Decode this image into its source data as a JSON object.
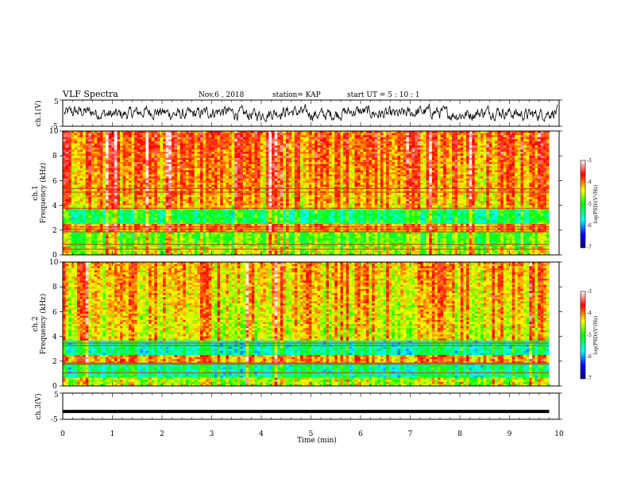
{
  "header": {
    "title": "VLF Spectra",
    "date": "Nov.6  , 2018",
    "station": "station= KAP",
    "start": "start  UT  =   5  : 10 : 1"
  },
  "chart_data": [
    {
      "type": "line",
      "ylabel": "ch.1(V)",
      "ylim": [
        -5,
        5
      ],
      "yticks": [
        "5",
        "-5"
      ],
      "xlim": [
        0,
        10
      ]
    },
    {
      "type": "heatmap",
      "ylabel_line1": "ch.1",
      "ylabel_line2": "Frequency  (kHz)",
      "ylim": [
        0,
        10
      ],
      "yticks": [
        "0",
        "2",
        "4",
        "6",
        "8",
        "10"
      ],
      "xlim": [
        0,
        9.8
      ],
      "colorbar": {
        "label": "log(PSD)(V²/Hz)",
        "ticks": [
          "-3",
          "-4",
          "-5",
          "-6",
          "-7"
        ],
        "range": [
          -7,
          -3
        ]
      }
    },
    {
      "type": "heatmap",
      "ylabel_line1": "ch.2",
      "ylabel_line2": "Frequency  (kHz)",
      "ylim": [
        0,
        10
      ],
      "yticks": [
        "0",
        "2",
        "4",
        "6",
        "8",
        "10"
      ],
      "xlim": [
        0,
        9.8
      ],
      "colorbar": {
        "label": "log(PSD)(V²/Hz)",
        "ticks": [
          "-3",
          "-4",
          "-5",
          "-6",
          "-7"
        ],
        "range": [
          -7,
          -3
        ]
      }
    },
    {
      "type": "line",
      "ylabel": "ch.3(V)",
      "ylim": [
        -5,
        5
      ],
      "yticks": [
        "5",
        "-5"
      ],
      "constant_value": -2,
      "xlim": [
        0,
        9.8
      ]
    }
  ],
  "xaxis": {
    "label": "Time  (min)",
    "ticks": [
      "0",
      "1",
      "2",
      "3",
      "4",
      "5",
      "6",
      "7",
      "8",
      "9",
      "10"
    ],
    "range": [
      0,
      10
    ]
  },
  "colors": {
    "colormap": [
      "#000080",
      "#0000ff",
      "#00ffff",
      "#00ff00",
      "#ffff00",
      "#ff0000",
      "#ffffff"
    ]
  }
}
